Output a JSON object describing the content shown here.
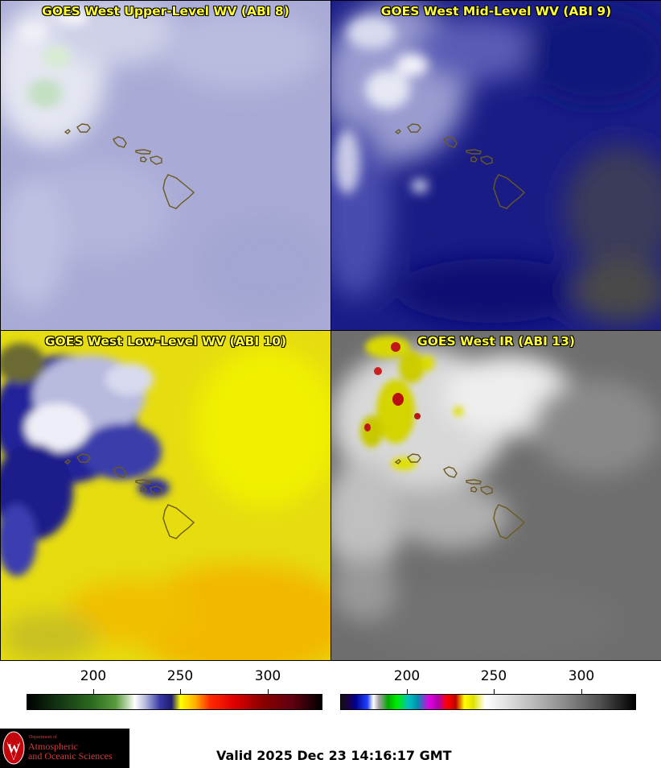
{
  "panels": {
    "top_left": {
      "title": "GOES West Upper-Level WV (ABI 8)"
    },
    "top_right": {
      "title": "GOES West Mid-Level WV (ABI 9)"
    },
    "bottom_left": {
      "title": "GOES West Low-Level WV (ABI 10)"
    },
    "bottom_right": {
      "title": "GOES West IR (ABI 13)"
    }
  },
  "colorbars": {
    "left": {
      "ticks": [
        "200",
        "250",
        "300"
      ]
    },
    "right": {
      "ticks": [
        "200",
        "250",
        "300"
      ]
    }
  },
  "logo": {
    "dept_line": "Department of",
    "line1": "Atmospheric",
    "line2": "and Oceanic Sciences",
    "emblem_letter": "W"
  },
  "footer": {
    "valid": "Valid 2025 Dec 23 14:16:17 GMT"
  }
}
